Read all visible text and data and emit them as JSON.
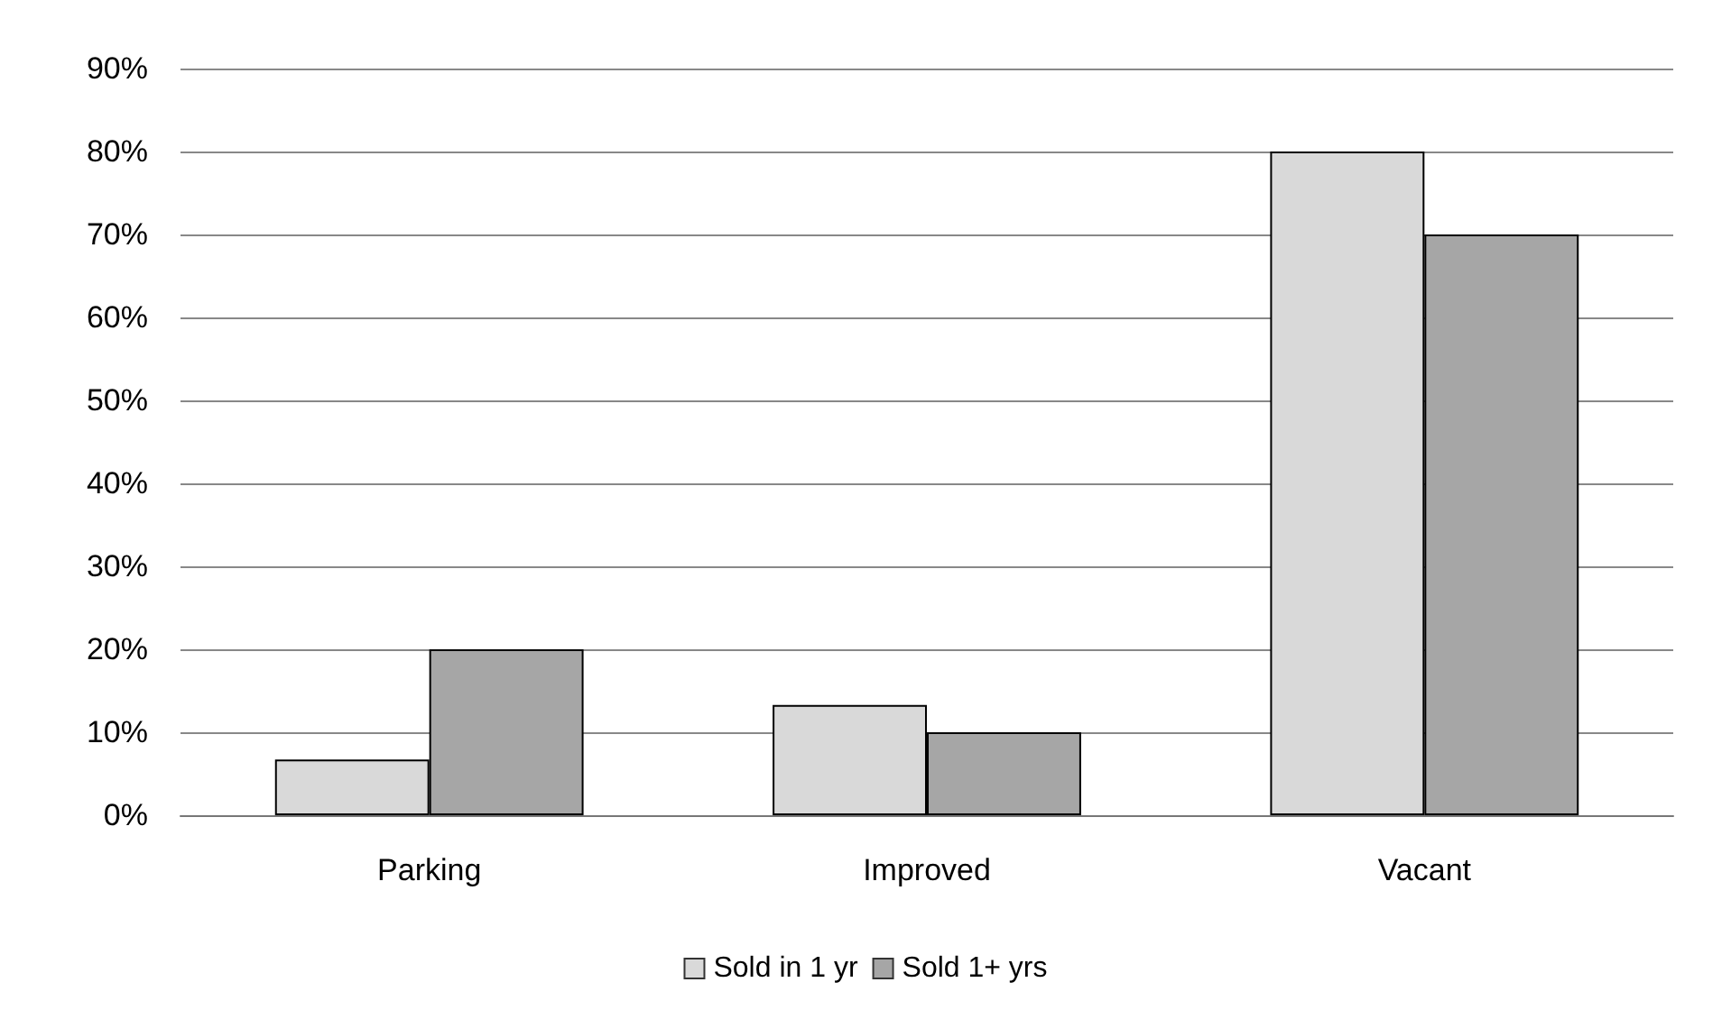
{
  "chart_data": {
    "type": "bar",
    "categories": [
      "Parking",
      "Improved",
      "Vacant"
    ],
    "series": [
      {
        "name": "Sold in 1 yr",
        "color": "#d9d9d9",
        "values": [
          6.7,
          13.3,
          80
        ]
      },
      {
        "name": "Sold 1+ yrs",
        "color": "#a6a6a6",
        "values": [
          20,
          10,
          70
        ]
      }
    ],
    "ylim": [
      0,
      90
    ],
    "yticks": [
      {
        "value": 0,
        "label": "0%"
      },
      {
        "value": 10,
        "label": "10%"
      },
      {
        "value": 20,
        "label": "20%"
      },
      {
        "value": 30,
        "label": "30%"
      },
      {
        "value": 40,
        "label": "40%"
      },
      {
        "value": 50,
        "label": "50%"
      },
      {
        "value": 60,
        "label": "60%"
      },
      {
        "value": 70,
        "label": "70%"
      },
      {
        "value": 80,
        "label": "80%"
      },
      {
        "value": 90,
        "label": "90%"
      }
    ],
    "grid": "y",
    "legend": "bottom"
  }
}
